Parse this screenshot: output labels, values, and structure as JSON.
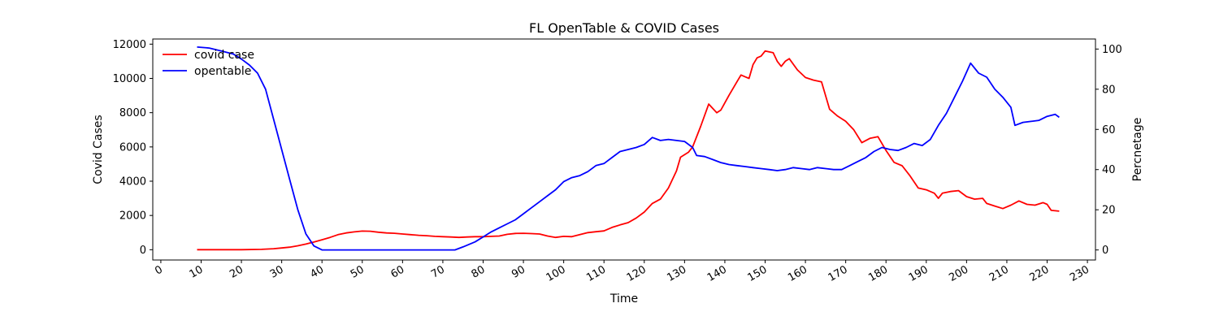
{
  "chart_data": {
    "type": "line",
    "title": "FL OpenTable & COVID Cases",
    "xlabel": "Time",
    "ylabel_left": "Covid Cases",
    "ylabel_right": "Percnetage",
    "xlim": [
      -2,
      232
    ],
    "ylim_left": [
      -600,
      12300
    ],
    "ylim_right": [
      -5,
      105
    ],
    "xticks": [
      0,
      10,
      20,
      30,
      40,
      50,
      60,
      70,
      80,
      90,
      100,
      110,
      120,
      130,
      140,
      150,
      160,
      170,
      180,
      190,
      200,
      210,
      220,
      230
    ],
    "yticks_left": [
      0,
      2000,
      4000,
      6000,
      8000,
      10000,
      12000
    ],
    "yticks_right": [
      0,
      20,
      40,
      60,
      80,
      100
    ],
    "grid": false,
    "legend_position": "top-left",
    "series": [
      {
        "name": "covid case",
        "color": "#ff0000",
        "axis": "left",
        "points": [
          [
            9,
            0
          ],
          [
            15,
            0
          ],
          [
            20,
            0
          ],
          [
            25,
            20
          ],
          [
            28,
            60
          ],
          [
            30,
            100
          ],
          [
            32,
            150
          ],
          [
            34,
            230
          ],
          [
            36,
            330
          ],
          [
            38,
            450
          ],
          [
            40,
            580
          ],
          [
            42,
            720
          ],
          [
            44,
            880
          ],
          [
            46,
            980
          ],
          [
            48,
            1040
          ],
          [
            50,
            1090
          ],
          [
            52,
            1080
          ],
          [
            54,
            1020
          ],
          [
            56,
            980
          ],
          [
            58,
            960
          ],
          [
            60,
            920
          ],
          [
            62,
            880
          ],
          [
            64,
            840
          ],
          [
            66,
            820
          ],
          [
            68,
            780
          ],
          [
            70,
            760
          ],
          [
            72,
            740
          ],
          [
            74,
            720
          ],
          [
            76,
            740
          ],
          [
            78,
            760
          ],
          [
            80,
            760
          ],
          [
            82,
            780
          ],
          [
            84,
            800
          ],
          [
            86,
            900
          ],
          [
            88,
            950
          ],
          [
            90,
            960
          ],
          [
            92,
            940
          ],
          [
            94,
            920
          ],
          [
            96,
            800
          ],
          [
            98,
            720
          ],
          [
            100,
            780
          ],
          [
            102,
            760
          ],
          [
            104,
            880
          ],
          [
            106,
            1000
          ],
          [
            108,
            1050
          ],
          [
            110,
            1100
          ],
          [
            112,
            1300
          ],
          [
            114,
            1450
          ],
          [
            116,
            1580
          ],
          [
            118,
            1850
          ],
          [
            120,
            2200
          ],
          [
            122,
            2700
          ],
          [
            124,
            2950
          ],
          [
            126,
            3600
          ],
          [
            128,
            4600
          ],
          [
            129,
            5400
          ],
          [
            131,
            5700
          ],
          [
            132,
            6000
          ],
          [
            134,
            7200
          ],
          [
            136,
            8500
          ],
          [
            138,
            8000
          ],
          [
            139,
            8150
          ],
          [
            141,
            9000
          ],
          [
            143,
            9800
          ],
          [
            144,
            10200
          ],
          [
            145,
            10100
          ],
          [
            146,
            10000
          ],
          [
            147,
            10800
          ],
          [
            148,
            11200
          ],
          [
            149,
            11300
          ],
          [
            150,
            11600
          ],
          [
            152,
            11500
          ],
          [
            153,
            11000
          ],
          [
            154,
            10700
          ],
          [
            155,
            11000
          ],
          [
            156,
            11150
          ],
          [
            158,
            10500
          ],
          [
            160,
            10050
          ],
          [
            162,
            9900
          ],
          [
            164,
            9800
          ],
          [
            166,
            8200
          ],
          [
            168,
            7800
          ],
          [
            170,
            7500
          ],
          [
            172,
            7000
          ],
          [
            174,
            6250
          ],
          [
            176,
            6500
          ],
          [
            178,
            6600
          ],
          [
            180,
            5800
          ],
          [
            182,
            5100
          ],
          [
            184,
            4900
          ],
          [
            186,
            4300
          ],
          [
            188,
            3600
          ],
          [
            190,
            3500
          ],
          [
            192,
            3300
          ],
          [
            193,
            3000
          ],
          [
            194,
            3300
          ],
          [
            196,
            3400
          ],
          [
            198,
            3450
          ],
          [
            200,
            3100
          ],
          [
            202,
            2950
          ],
          [
            204,
            3000
          ],
          [
            205,
            2700
          ],
          [
            207,
            2550
          ],
          [
            209,
            2400
          ],
          [
            211,
            2600
          ],
          [
            213,
            2850
          ],
          [
            215,
            2650
          ],
          [
            217,
            2600
          ],
          [
            219,
            2750
          ],
          [
            220,
            2650
          ],
          [
            221,
            2300
          ],
          [
            223,
            2250
          ]
        ]
      },
      {
        "name": "opentable",
        "color": "#0000ff",
        "axis": "right",
        "points": [
          [
            9,
            101
          ],
          [
            12,
            100.5
          ],
          [
            15,
            99
          ],
          [
            18,
            97.5
          ],
          [
            20,
            95
          ],
          [
            22,
            92
          ],
          [
            24,
            88
          ],
          [
            26,
            80
          ],
          [
            28,
            65
          ],
          [
            30,
            50
          ],
          [
            32,
            35
          ],
          [
            34,
            20
          ],
          [
            36,
            8
          ],
          [
            38,
            2
          ],
          [
            40,
            0
          ],
          [
            45,
            0
          ],
          [
            50,
            0
          ],
          [
            55,
            0
          ],
          [
            60,
            0
          ],
          [
            65,
            0
          ],
          [
            70,
            0
          ],
          [
            73,
            0
          ],
          [
            75,
            1.5
          ],
          [
            78,
            4
          ],
          [
            80,
            6.5
          ],
          [
            82,
            9
          ],
          [
            84,
            11
          ],
          [
            86,
            13
          ],
          [
            88,
            15
          ],
          [
            90,
            18
          ],
          [
            92,
            21
          ],
          [
            94,
            24
          ],
          [
            96,
            27
          ],
          [
            98,
            30
          ],
          [
            100,
            34
          ],
          [
            102,
            36
          ],
          [
            104,
            37
          ],
          [
            106,
            39
          ],
          [
            108,
            42
          ],
          [
            110,
            43
          ],
          [
            112,
            46
          ],
          [
            114,
            49
          ],
          [
            116,
            50
          ],
          [
            118,
            51
          ],
          [
            120,
            52.5
          ],
          [
            122,
            56
          ],
          [
            124,
            54.5
          ],
          [
            126,
            55
          ],
          [
            128,
            54.5
          ],
          [
            130,
            54
          ],
          [
            132,
            51
          ],
          [
            133,
            47
          ],
          [
            135,
            46.5
          ],
          [
            137,
            45
          ],
          [
            139,
            43.5
          ],
          [
            141,
            42.5
          ],
          [
            143,
            42
          ],
          [
            145,
            41.5
          ],
          [
            147,
            41
          ],
          [
            149,
            40.5
          ],
          [
            151,
            40
          ],
          [
            153,
            39.5
          ],
          [
            155,
            40
          ],
          [
            157,
            41
          ],
          [
            159,
            40.5
          ],
          [
            161,
            40
          ],
          [
            163,
            41
          ],
          [
            165,
            40.5
          ],
          [
            167,
            40
          ],
          [
            169,
            40
          ],
          [
            171,
            42
          ],
          [
            173,
            44
          ],
          [
            175,
            46
          ],
          [
            177,
            49
          ],
          [
            179,
            51
          ],
          [
            181,
            50
          ],
          [
            183,
            49.5
          ],
          [
            185,
            51
          ],
          [
            187,
            53
          ],
          [
            189,
            52
          ],
          [
            191,
            55
          ],
          [
            193,
            62
          ],
          [
            195,
            68
          ],
          [
            197,
            76
          ],
          [
            199,
            84
          ],
          [
            201,
            93
          ],
          [
            203,
            88
          ],
          [
            205,
            86
          ],
          [
            207,
            80
          ],
          [
            209,
            76
          ],
          [
            211,
            71
          ],
          [
            212,
            62
          ],
          [
            214,
            63.5
          ],
          [
            216,
            64
          ],
          [
            218,
            64.5
          ],
          [
            220,
            66.5
          ],
          [
            222,
            67.5
          ],
          [
            223,
            66
          ]
        ]
      }
    ]
  }
}
